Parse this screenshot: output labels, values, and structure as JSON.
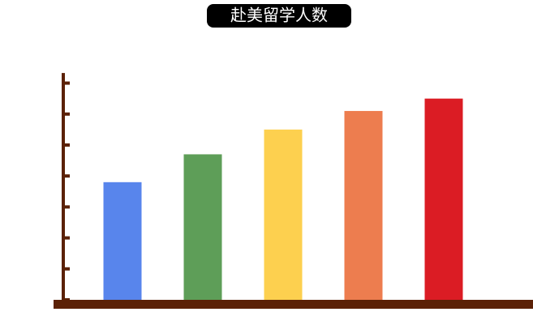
{
  "chart_data": {
    "type": "bar",
    "title": "赴美留学人数",
    "categories": [
      null,
      null,
      null,
      null,
      null
    ],
    "values": [
      3.8,
      4.7,
      5.5,
      6.1,
      6.5
    ],
    "colors": [
      "#5885ec",
      "#5e9e58",
      "#fdd04f",
      "#ed7d4f",
      "#db1c24"
    ],
    "axis_color": "#5b2106",
    "ylim": [
      0,
      7.3
    ],
    "yticks": [
      0,
      1,
      2,
      3,
      4,
      5,
      6,
      7
    ],
    "grid": false
  }
}
